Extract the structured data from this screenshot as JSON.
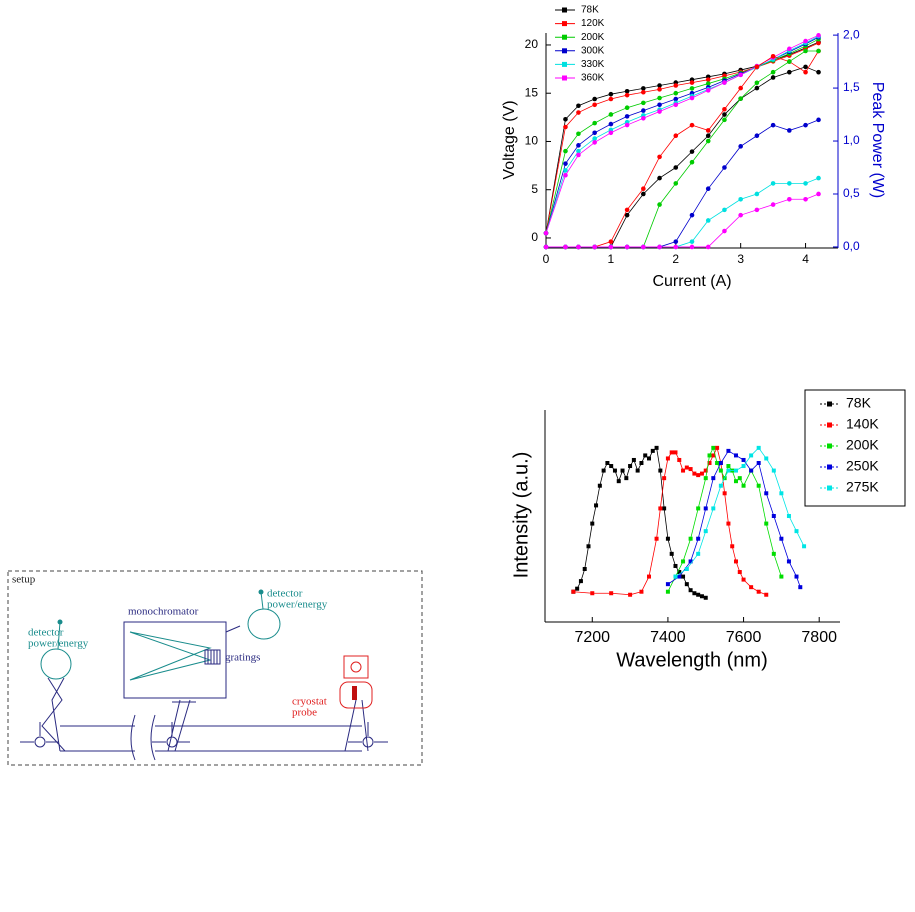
{
  "chart_data": [
    {
      "type": "line",
      "x_label": "Current (A)",
      "y_label": "Voltage (V)",
      "y2_label": "Peak Power (W)",
      "y2_color": "#0000cc",
      "x": [
        0,
        0.3,
        0.5,
        0.75,
        1,
        1.25,
        1.5,
        1.75,
        2,
        2.25,
        2.5,
        2.75,
        3,
        3.25,
        3.5,
        3.75,
        4,
        4.2
      ],
      "xlim": [
        0,
        4.5
      ],
      "xticks": [
        0,
        1,
        2,
        3,
        4
      ],
      "ylim": [
        -1.04,
        21.24
      ],
      "yticks": [
        0,
        5,
        10,
        15,
        20
      ],
      "y2lim": [
        -0.01,
        2.02
      ],
      "y2ticks": [
        {
          "value": 0,
          "label": "0,0"
        },
        {
          "value": 0.5,
          "label": "0,5"
        },
        {
          "value": 1,
          "label": "1,0"
        },
        {
          "value": 1.5,
          "label": "1,5"
        },
        {
          "value": 2,
          "label": "2,0"
        }
      ],
      "legend": "top-left",
      "series": [
        {
          "name": "78K",
          "color": "#000000",
          "values": [
            0.5,
            12.3,
            13.7,
            14.4,
            14.9,
            15.2,
            15.5,
            15.8,
            16.1,
            16.4,
            16.7,
            17.0,
            17.4,
            17.8,
            18.4,
            19.0,
            19.7,
            20.3
          ]
        },
        {
          "name": "120K",
          "color": "#ff0000",
          "values": [
            0.5,
            11.5,
            13.0,
            13.8,
            14.4,
            14.8,
            15.1,
            15.4,
            15.8,
            16.1,
            16.4,
            16.8,
            17.2,
            17.7,
            18.3,
            18.9,
            19.6,
            20.2
          ]
        },
        {
          "name": "200K",
          "color": "#00cc00",
          "values": [
            0.5,
            9.0,
            10.8,
            11.9,
            12.8,
            13.5,
            14.0,
            14.5,
            15.0,
            15.5,
            16.0,
            16.5,
            17.1,
            17.7,
            18.4,
            19.1,
            19.9,
            20.6
          ]
        },
        {
          "name": "300K",
          "color": "#0000cc",
          "values": [
            0.5,
            7.7,
            9.6,
            10.9,
            11.8,
            12.6,
            13.2,
            13.8,
            14.4,
            15.0,
            15.6,
            16.3,
            17.0,
            17.7,
            18.5,
            19.3,
            20.1,
            20.8
          ]
        },
        {
          "name": "330K",
          "color": "#00e0e0",
          "values": [
            0.5,
            7.0,
            9.0,
            10.3,
            11.2,
            12.0,
            12.7,
            13.3,
            14.0,
            14.7,
            15.4,
            16.1,
            16.9,
            17.7,
            18.5,
            19.4,
            20.2,
            20.9
          ]
        },
        {
          "name": "360K",
          "color": "#ff00ff",
          "values": [
            0.5,
            6.5,
            8.6,
            9.9,
            10.9,
            11.7,
            12.4,
            13.1,
            13.8,
            14.5,
            15.3,
            16.1,
            16.9,
            17.8,
            18.7,
            19.6,
            20.4,
            21.0
          ]
        },
        {
          "color": "#000000",
          "axis": "y2",
          "values": [
            0,
            0,
            0,
            0,
            0,
            0.3,
            0.5,
            0.65,
            0.75,
            0.9,
            1.05,
            1.25,
            1.4,
            1.5,
            1.6,
            1.65,
            1.7,
            1.65
          ]
        },
        {
          "color": "#ff0000",
          "axis": "y2",
          "values": [
            0,
            0,
            0,
            0,
            0.05,
            0.35,
            0.55,
            0.85,
            1.05,
            1.15,
            1.1,
            1.3,
            1.5,
            1.7,
            1.8,
            1.75,
            1.65,
            1.85
          ]
        },
        {
          "color": "#00cc00",
          "axis": "y2",
          "values": [
            0,
            0,
            0,
            0,
            0,
            0,
            0,
            0.4,
            0.6,
            0.8,
            1.0,
            1.2,
            1.4,
            1.55,
            1.65,
            1.75,
            1.85,
            1.85
          ]
        },
        {
          "color": "#0000cc",
          "axis": "y2",
          "values": [
            0,
            0,
            0,
            0,
            0,
            0,
            0,
            0,
            0.05,
            0.3,
            0.55,
            0.75,
            0.95,
            1.05,
            1.15,
            1.1,
            1.15,
            1.2
          ]
        },
        {
          "color": "#00e0e0",
          "axis": "y2",
          "values": [
            0,
            0,
            0,
            0,
            0,
            0,
            0,
            0,
            0,
            0.05,
            0.25,
            0.35,
            0.45,
            0.5,
            0.6,
            0.6,
            0.6,
            0.65
          ]
        },
        {
          "color": "#ff00ff",
          "axis": "y2",
          "values": [
            0,
            0,
            0,
            0,
            0,
            0,
            0,
            0,
            0,
            0,
            0,
            0.15,
            0.3,
            0.35,
            0.4,
            0.45,
            0.45,
            0.5
          ]
        }
      ]
    },
    {
      "type": "scatter-line",
      "x_label": "Wavelength (nm)",
      "y_label": "Intensity (a.u.)",
      "xlim": [
        7075,
        7855
      ],
      "xticks": [
        7200,
        7400,
        7600,
        7800
      ],
      "ylim": [
        -0.15,
        1.25
      ],
      "legend": "top-right",
      "series": [
        {
          "name": "78K",
          "color": "#000000",
          "x": [
            7150,
            7160,
            7170,
            7180,
            7190,
            7200,
            7210,
            7220,
            7230,
            7240,
            7250,
            7260,
            7270,
            7280,
            7290,
            7300,
            7310,
            7320,
            7330,
            7340,
            7350,
            7360,
            7370,
            7380,
            7390,
            7400,
            7410,
            7420,
            7430,
            7440,
            7450,
            7460,
            7470,
            7480,
            7490,
            7500
          ],
          "values": [
            0.05,
            0.07,
            0.12,
            0.2,
            0.35,
            0.5,
            0.62,
            0.75,
            0.85,
            0.9,
            0.88,
            0.85,
            0.78,
            0.85,
            0.8,
            0.88,
            0.92,
            0.85,
            0.9,
            0.95,
            0.93,
            0.98,
            1.0,
            0.85,
            0.6,
            0.4,
            0.3,
            0.22,
            0.18,
            0.15,
            0.1,
            0.06,
            0.04,
            0.03,
            0.02,
            0.01
          ]
        },
        {
          "name": "140K",
          "color": "#ff0000",
          "x": [
            7150,
            7200,
            7250,
            7300,
            7330,
            7350,
            7370,
            7380,
            7390,
            7400,
            7410,
            7420,
            7430,
            7440,
            7450,
            7460,
            7470,
            7480,
            7490,
            7500,
            7510,
            7520,
            7530,
            7540,
            7550,
            7560,
            7570,
            7580,
            7590,
            7600,
            7620,
            7640,
            7660
          ],
          "values": [
            0.05,
            0.04,
            0.04,
            0.03,
            0.05,
            0.15,
            0.4,
            0.6,
            0.8,
            0.93,
            0.97,
            0.97,
            0.92,
            0.85,
            0.87,
            0.86,
            0.83,
            0.82,
            0.83,
            0.85,
            0.9,
            0.95,
            1.0,
            0.9,
            0.7,
            0.5,
            0.35,
            0.25,
            0.18,
            0.13,
            0.08,
            0.05,
            0.03
          ]
        },
        {
          "name": "200K",
          "color": "#00dd00",
          "x": [
            7400,
            7420,
            7440,
            7460,
            7480,
            7500,
            7510,
            7520,
            7530,
            7540,
            7550,
            7560,
            7570,
            7580,
            7590,
            7600,
            7620,
            7640,
            7660,
            7680,
            7700
          ],
          "values": [
            0.05,
            0.15,
            0.25,
            0.4,
            0.6,
            0.8,
            0.95,
            1.0,
            0.9,
            0.85,
            0.8,
            0.88,
            0.85,
            0.78,
            0.8,
            0.75,
            0.85,
            0.75,
            0.5,
            0.3,
            0.15
          ]
        },
        {
          "name": "250K",
          "color": "#0000dd",
          "x": [
            7400,
            7430,
            7460,
            7480,
            7500,
            7520,
            7540,
            7560,
            7580,
            7600,
            7620,
            7640,
            7660,
            7680,
            7700,
            7720,
            7740,
            7750
          ],
          "values": [
            0.1,
            0.15,
            0.25,
            0.4,
            0.6,
            0.8,
            0.9,
            0.98,
            0.95,
            0.92,
            0.85,
            0.9,
            0.7,
            0.55,
            0.4,
            0.25,
            0.15,
            0.08
          ]
        },
        {
          "name": "275K",
          "color": "#00e5e5",
          "x": [
            7420,
            7450,
            7480,
            7500,
            7520,
            7540,
            7560,
            7580,
            7600,
            7620,
            7640,
            7660,
            7680,
            7700,
            7720,
            7740,
            7760
          ],
          "values": [
            0.15,
            0.2,
            0.3,
            0.45,
            0.6,
            0.75,
            0.85,
            0.85,
            0.88,
            0.95,
            1.0,
            0.93,
            0.85,
            0.7,
            0.55,
            0.45,
            0.35
          ]
        }
      ]
    }
  ],
  "diagram": {
    "title": "setup",
    "detector_left": [
      "detector",
      "power/energy"
    ],
    "monochromator": "monochromator",
    "detector_right": [
      "detector",
      "power/energy"
    ],
    "gratings": "gratings",
    "cryostat": [
      "cryostat",
      "probe"
    ]
  }
}
